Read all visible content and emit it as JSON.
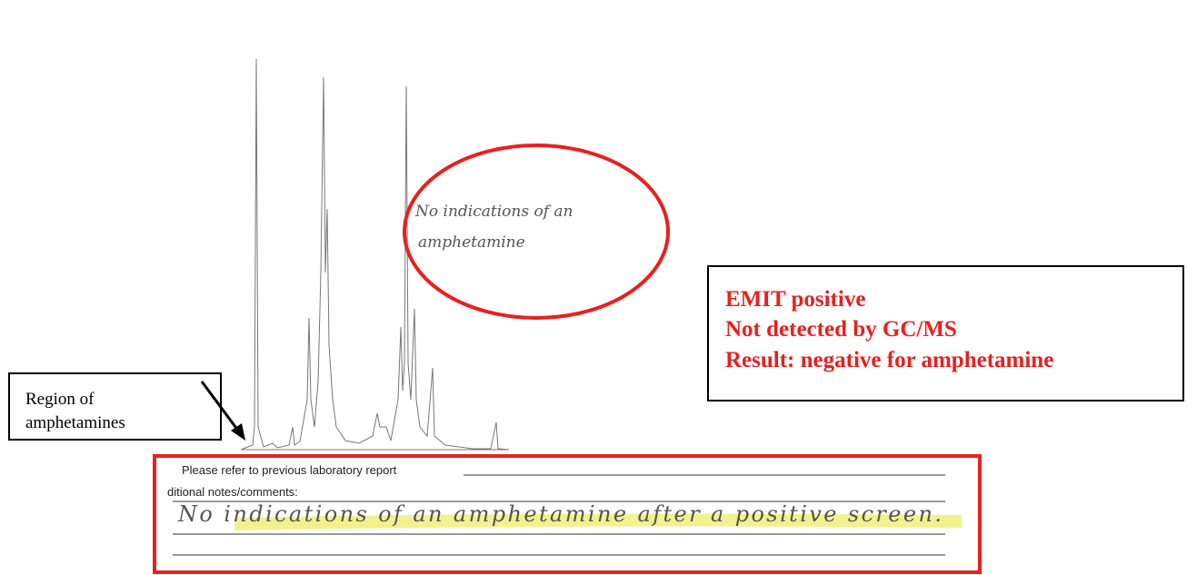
{
  "chromatogram_note": "No indications of an amphetamine",
  "result_box": {
    "lines": [
      "EMIT positive",
      "Not detected by GC/MS",
      "Result: negative for  amphetamine"
    ]
  },
  "region_label": [
    "Region of",
    "amphetamines"
  ],
  "report_form": {
    "refer_line": "Please refer to previous laboratory report",
    "notes_label": "ditional notes/comments:",
    "handwritten_note": "No indications of an amphetamine after a positive screen."
  }
}
